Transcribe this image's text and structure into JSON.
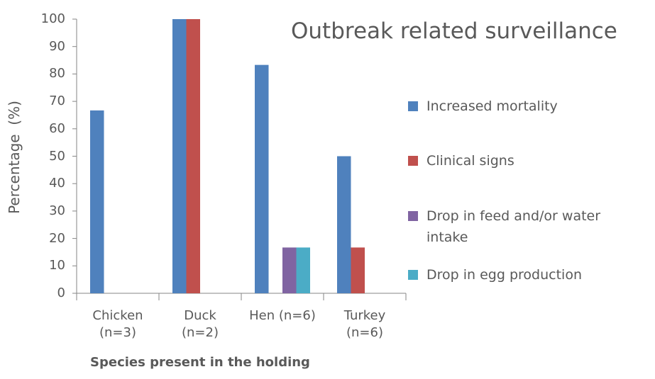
{
  "chart_data": {
    "type": "bar",
    "title": "Outbreak related surveillance",
    "x_label": "Species present in the holding",
    "y_label": "Percentage  (%)",
    "categories": [
      "Chicken\n(n=3)",
      "Duck\n(n=2)",
      "Hen (n=6)",
      "Turkey\n(n=6)"
    ],
    "series": [
      {
        "name": "Increased mortality",
        "color": "#4f81bd",
        "values": [
          66.7,
          100,
          83.3,
          50
        ]
      },
      {
        "name": "Clinical signs",
        "color": "#c0504d",
        "values": [
          0,
          100,
          0,
          16.7
        ]
      },
      {
        "name": "Drop in feed and/or water intake",
        "color": "#8064a2",
        "values": [
          0,
          0,
          16.7,
          0
        ]
      },
      {
        "name": "Drop in egg production",
        "color": "#4bacc6",
        "values": [
          0,
          0,
          16.7,
          0
        ]
      }
    ],
    "ylim": [
      0,
      100
    ],
    "yticks": [
      0,
      10,
      20,
      30,
      40,
      50,
      60,
      70,
      80,
      90,
      100
    ],
    "grid": false,
    "legend": "right"
  }
}
